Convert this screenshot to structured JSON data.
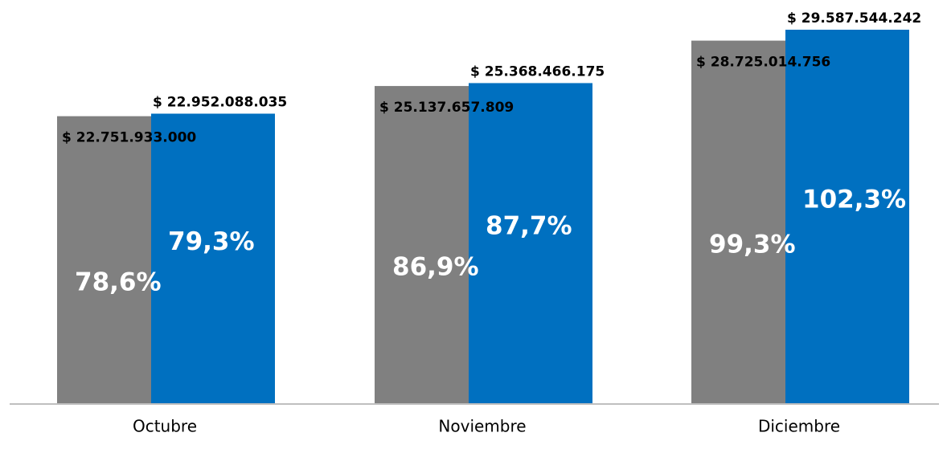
{
  "chart_data": {
    "type": "bar",
    "categories": [
      "Octubre",
      "Noviembre",
      "Diciembre"
    ],
    "series": [
      {
        "color": "#808080",
        "values": [
          22751933000,
          25137657809,
          28725014756
        ],
        "value_labels": [
          "$ 22.751.933.000",
          "$ 25.137.657.809",
          "$ 28.725.014.756"
        ],
        "percent_values": [
          78.6,
          86.9,
          99.3
        ],
        "percent_labels": [
          "78,6%",
          "86,9%",
          "99,3%"
        ]
      },
      {
        "color": "#0070c0",
        "values": [
          22952088035,
          25368466175,
          29587544242
        ],
        "value_labels": [
          "$ 22.952.088.035",
          "$ 25.368.466.175",
          "$ 29.587.544.242"
        ],
        "percent_values": [
          79.3,
          87.7,
          102.3
        ],
        "percent_labels": [
          "79,3%",
          "87,7%",
          "102,3%"
        ]
      }
    ]
  }
}
